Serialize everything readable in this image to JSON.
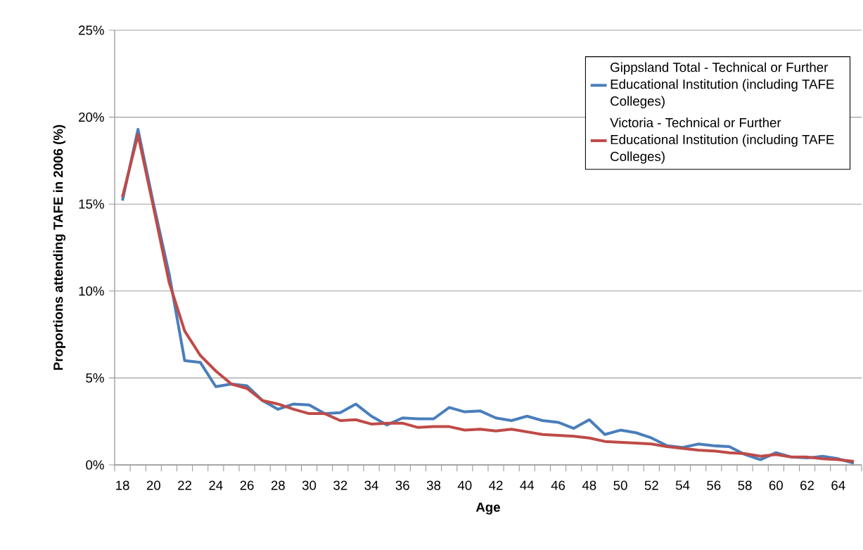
{
  "chart_data": {
    "type": "line",
    "xlabel": "Age",
    "ylabel": "Proportions attending TAFE in 2006 (%)",
    "categories": [
      "18",
      null,
      "20",
      null,
      "22",
      null,
      "24",
      null,
      "26",
      null,
      "28",
      null,
      "30",
      null,
      "32",
      null,
      "34",
      null,
      "36",
      null,
      "38",
      null,
      "40",
      null,
      "42",
      null,
      "44",
      null,
      "46",
      null,
      "48",
      null,
      "50",
      null,
      "52",
      null,
      "54",
      null,
      "56",
      null,
      "58",
      null,
      "60",
      null,
      "62",
      null,
      "64",
      null
    ],
    "series": [
      {
        "name": "Gippsland Total - Technical or Further Educational Institution (including TAFE Colleges)",
        "color": "#4a7ebb",
        "values": [
          15.2,
          19.3,
          15.0,
          11.0,
          6.0,
          5.9,
          4.5,
          4.65,
          4.55,
          3.7,
          3.2,
          3.5,
          3.45,
          2.95,
          3.0,
          3.5,
          2.8,
          2.3,
          2.7,
          2.65,
          2.65,
          3.3,
          3.05,
          3.1,
          2.7,
          2.55,
          2.8,
          2.55,
          2.45,
          2.1,
          2.6,
          1.75,
          2.0,
          1.85,
          1.55,
          1.1,
          1.0,
          1.2,
          1.1,
          1.05,
          0.6,
          0.3,
          0.7,
          0.45,
          0.4,
          0.5,
          0.35,
          0.1
        ]
      },
      {
        "name": "Victoria - Technical or Further Educational Institution (including TAFE Colleges)",
        "color": "#be4b48",
        "values": [
          15.4,
          19.0,
          14.8,
          10.5,
          7.7,
          6.3,
          5.4,
          4.65,
          4.4,
          3.7,
          3.5,
          3.2,
          2.95,
          2.95,
          2.55,
          2.6,
          2.35,
          2.4,
          2.4,
          2.15,
          2.2,
          2.2,
          2.0,
          2.05,
          1.95,
          2.05,
          1.9,
          1.75,
          1.7,
          1.65,
          1.55,
          1.35,
          1.3,
          1.25,
          1.2,
          1.05,
          0.95,
          0.85,
          0.8,
          0.7,
          0.65,
          0.5,
          0.6,
          0.45,
          0.45,
          0.35,
          0.3,
          0.2
        ]
      }
    ],
    "ylim": [
      0,
      25
    ],
    "yticks": [
      {
        "value": 0,
        "label": "0%"
      },
      {
        "value": 5,
        "label": "5%"
      },
      {
        "value": 10,
        "label": "10%"
      },
      {
        "value": 15,
        "label": "15%"
      },
      {
        "value": 20,
        "label": "20%"
      },
      {
        "value": 25,
        "label": "25%"
      }
    ],
    "grid": "y",
    "legend": "top right",
    "marker": "none",
    "line_style": "solid"
  }
}
